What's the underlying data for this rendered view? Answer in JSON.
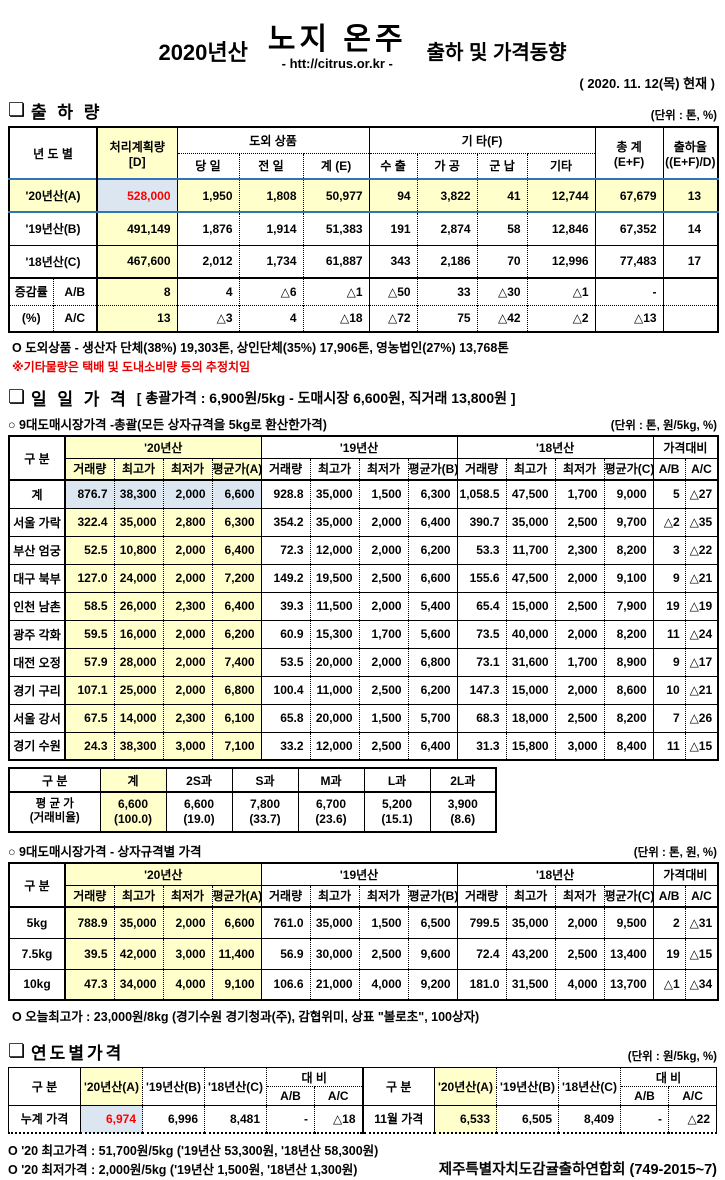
{
  "header": {
    "year": "2020년산",
    "title": "노지 온주",
    "subtitle": "출하 및 가격동향",
    "url": "- htt://citrus.or.kr -",
    "date": "( 2020. 11. 12(목) 현재 )"
  },
  "colors": {
    "accent_yellow": "#FFFFCC",
    "accent_blue": "#DCE6F1",
    "highlight_red": "#FF0000",
    "row_border_blue": "#2E75B6"
  },
  "shipment": {
    "section_title": "출 하 량",
    "unit": "(단위 : 톤, %)",
    "header": {
      "year_col": "년 도 별",
      "plan1": "처리계획량",
      "plan2": "[D]",
      "group_out": "도외 상품",
      "today": "당 일",
      "prev": "전 일",
      "sum_e": "계 (E)",
      "group_etc": "기      타(F)",
      "export": "수 출",
      "process": "가 공",
      "military": "군 납",
      "etc": "기타",
      "total1": "총  계",
      "total2": "(E+F)",
      "rate1": "출하율",
      "rate2": "((E+F)/D)"
    },
    "rows": [
      {
        "label": "'20년산(A)",
        "values": [
          "528,000",
          "1,950",
          "1,808",
          "50,977",
          "94",
          "3,822",
          "41",
          "12,744",
          "67,679",
          "13"
        ]
      },
      {
        "label": "'19년산(B)",
        "values": [
          "491,149",
          "1,876",
          "1,914",
          "51,383",
          "191",
          "2,874",
          "58",
          "12,846",
          "67,352",
          "14"
        ]
      },
      {
        "label": "'18년산(C)",
        "values": [
          "467,600",
          "2,012",
          "1,734",
          "61,887",
          "343",
          "2,186",
          "70",
          "12,996",
          "77,483",
          "17"
        ]
      }
    ],
    "change_rows": [
      {
        "label1": "증감률",
        "label2": "A/B",
        "values": [
          "8",
          "4",
          "△6",
          "△1",
          "△50",
          "33",
          "△30",
          "△1",
          "-",
          ""
        ]
      },
      {
        "label1": "(%)",
        "label2": "A/C",
        "values": [
          "13",
          "△3",
          "4",
          "△18",
          "△72",
          "75",
          "△42",
          "△2",
          "△13",
          ""
        ]
      }
    ],
    "note1": "O 도외상품 - 생산자 단체(38%)  19,303톤,   상인단체(35%)  17,906톤,   영농법인(27%)  13,768톤",
    "note2": "※기타물량은 택배 및 도내소비량 등의 추정치임"
  },
  "daily_price": {
    "section_title": "일 일 가 격",
    "section_bracket": "[ 총괄가격 : 6,900원/5kg - 도매시장 6,600원, 직거래 13,800원 ]",
    "market_title": "○ 9대도매시장가격 -총괄(모든 상자규격을 5kg로 환산한가격)",
    "market_unit": "(단위 : 톤, 원/5kg, %)",
    "table_header": {
      "gubun": "구  분",
      "y20": "'20년산",
      "y19": "'19년산",
      "y18": "'18년산",
      "compare": "가격대비",
      "cols20": [
        "거래량",
        "최고가",
        "최저가",
        "평균가(A)"
      ],
      "cols19": [
        "거래량",
        "최고가",
        "최저가",
        "평균가(B)"
      ],
      "cols18": [
        "거래량",
        "최고가",
        "최저가",
        "평균가(C)"
      ],
      "ab": "A/B",
      "ac": "A/C"
    },
    "rows": [
      {
        "label": "계",
        "values": [
          "876.7",
          "38,300",
          "2,000",
          "6,600",
          "928.8",
          "35,000",
          "1,500",
          "6,300",
          "1,058.5",
          "47,500",
          "1,700",
          "9,000",
          "5",
          "△27"
        ]
      },
      {
        "label": "서울 가락",
        "values": [
          "322.4",
          "35,000",
          "2,800",
          "6,300",
          "354.2",
          "35,000",
          "2,000",
          "6,400",
          "390.7",
          "35,000",
          "2,500",
          "9,700",
          "△2",
          "△35"
        ]
      },
      {
        "label": "부산 엄궁",
        "values": [
          "52.5",
          "10,800",
          "2,000",
          "6,400",
          "72.3",
          "12,000",
          "2,000",
          "6,200",
          "53.3",
          "11,700",
          "2,300",
          "8,200",
          "3",
          "△22"
        ]
      },
      {
        "label": "대구 북부",
        "values": [
          "127.0",
          "24,000",
          "2,000",
          "7,200",
          "149.2",
          "19,500",
          "2,500",
          "6,600",
          "155.6",
          "47,500",
          "2,000",
          "9,100",
          "9",
          "△21"
        ]
      },
      {
        "label": "인천 남촌",
        "values": [
          "58.5",
          "26,000",
          "2,300",
          "6,400",
          "39.3",
          "11,500",
          "2,000",
          "5,400",
          "65.4",
          "15,000",
          "2,500",
          "7,900",
          "19",
          "△19"
        ]
      },
      {
        "label": "광주 각화",
        "values": [
          "59.5",
          "16,000",
          "2,000",
          "6,200",
          "60.9",
          "15,300",
          "1,700",
          "5,600",
          "73.5",
          "40,000",
          "2,000",
          "8,200",
          "11",
          "△24"
        ]
      },
      {
        "label": "대전 오정",
        "values": [
          "57.9",
          "28,000",
          "2,000",
          "7,400",
          "53.5",
          "20,000",
          "2,000",
          "6,800",
          "73.1",
          "31,600",
          "1,700",
          "8,900",
          "9",
          "△17"
        ]
      },
      {
        "label": "경기 구리",
        "values": [
          "107.1",
          "25,000",
          "2,000",
          "6,800",
          "100.4",
          "11,000",
          "2,500",
          "6,200",
          "147.3",
          "15,000",
          "2,000",
          "8,600",
          "10",
          "△21"
        ]
      },
      {
        "label": "서울 강서",
        "values": [
          "67.5",
          "14,000",
          "2,300",
          "6,100",
          "65.8",
          "20,000",
          "1,500",
          "5,700",
          "68.3",
          "18,000",
          "2,500",
          "8,200",
          "7",
          "△26"
        ]
      },
      {
        "label": "경기 수원",
        "values": [
          "24.3",
          "38,300",
          "3,000",
          "7,100",
          "33.2",
          "12,000",
          "2,500",
          "6,400",
          "31.3",
          "15,800",
          "3,000",
          "8,400",
          "11",
          "△15"
        ]
      }
    ]
  },
  "size_price": {
    "header": [
      "구  분",
      "계",
      "2S과",
      "S과",
      "M과",
      "L과",
      "2L과"
    ],
    "row_label1": "평 균 가",
    "row_label2": "(거래비율)",
    "values": [
      [
        "6,600",
        "(100.0)"
      ],
      [
        "6,600",
        "(19.0)"
      ],
      [
        "7,800",
        "(33.7)"
      ],
      [
        "6,700",
        "(23.6)"
      ],
      [
        "5,200",
        "(15.1)"
      ],
      [
        "3,900",
        "(8.6)"
      ]
    ]
  },
  "box_price": {
    "title": "○ 9대도매시장가격 - 상자규격별 가격",
    "unit": "(단위 : 톤, 원, %)",
    "rows": [
      {
        "label": "5kg",
        "values": [
          "788.9",
          "35,000",
          "2,000",
          "6,600",
          "761.0",
          "35,000",
          "1,500",
          "6,500",
          "799.5",
          "35,000",
          "2,000",
          "9,500",
          "2",
          "△31"
        ]
      },
      {
        "label": "7.5kg",
        "values": [
          "39.5",
          "42,000",
          "3,000",
          "11,400",
          "56.9",
          "30,000",
          "2,500",
          "9,600",
          "72.4",
          "43,200",
          "2,500",
          "13,400",
          "19",
          "△15"
        ]
      },
      {
        "label": "10kg",
        "values": [
          "47.3",
          "34,000",
          "4,000",
          "9,100",
          "106.6",
          "21,000",
          "4,000",
          "9,200",
          "181.0",
          "31,500",
          "4,000",
          "13,700",
          "△1",
          "△34"
        ]
      }
    ],
    "note": "O 오늘최고가 :   23,000원/8kg (경기수원   경기청과(주),   감협위미,   상표 \"볼로초\",   100상자)"
  },
  "yearly_price": {
    "section_title": "연도별가격",
    "unit": "(단위 : 원/5kg, %)",
    "header": {
      "gubun": "구    분",
      "a": "'20년산(A)",
      "b": "'19년산(B)",
      "c": "'18년산(C)",
      "daebi": "대   비",
      "ab": "A/B",
      "ac": "A/C"
    },
    "left": {
      "label": "누계 가격",
      "a": "6,974",
      "b": "6,996",
      "c": "8,481",
      "ab": "-",
      "ac": "△18"
    },
    "right": {
      "label": "11월 가격",
      "a": "6,533",
      "b": "6,505",
      "c": "8,409",
      "ab": "-",
      "ac": "△22"
    },
    "note1": "O '20 최고가격 : 51,700원/5kg ('19년산 53,300원, '18년산 58,300원)",
    "note2": "O '20 최저가격 :  2,000원/5kg ('19년산  1,500원, '18년산  1,300원)",
    "org": "제주특별자치도감귤출하연합회 (749-2015~7)"
  }
}
